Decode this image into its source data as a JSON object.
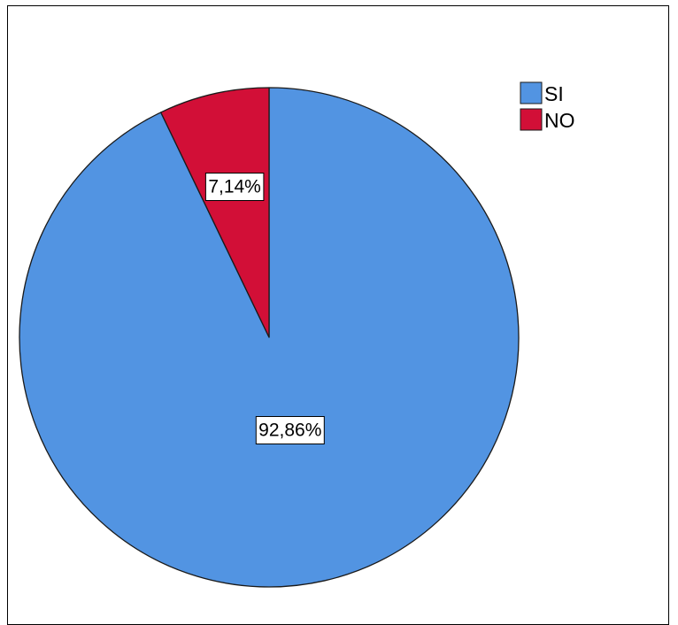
{
  "chart_data": {
    "type": "pie",
    "categories": [
      "SI",
      "NO"
    ],
    "values": [
      92.86,
      7.14
    ],
    "data_labels": [
      "92,86%",
      "7,14%"
    ],
    "colors": [
      "#5294e2",
      "#d20f37"
    ],
    "start_angle_deg": 0,
    "direction": "clockwise",
    "legend_position": "top-right",
    "legend": [
      "SI",
      "NO"
    ]
  }
}
